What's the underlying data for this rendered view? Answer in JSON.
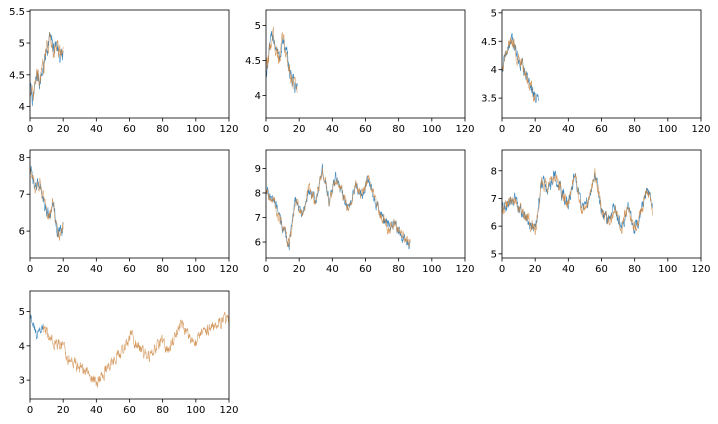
{
  "figure": {
    "colors": {
      "series_a": "#1f77b4",
      "series_b": "#cd853f"
    }
  },
  "chart_data": [
    {
      "type": "line",
      "title": "",
      "xlabel": "",
      "ylabel": "",
      "xlim": [
        0,
        120
      ],
      "ylim": [
        3.82,
        5.52
      ],
      "xticks": [
        0,
        20,
        40,
        60,
        80,
        100,
        120
      ],
      "yticks": [
        4.0,
        4.5,
        5.0,
        5.5
      ],
      "grid": false,
      "series": [
        {
          "color": "#1f77b4",
          "x": [
            0,
            20
          ],
          "noise": 0.22,
          "anchors": [
            [
              0,
              4.3
            ],
            [
              2,
              4.1
            ],
            [
              4,
              4.5
            ],
            [
              6,
              4.4
            ],
            [
              8,
              4.6
            ],
            [
              10,
              4.9
            ],
            [
              12,
              5.1
            ],
            [
              14,
              4.9
            ],
            [
              16,
              5.0
            ],
            [
              18,
              4.8
            ],
            [
              20,
              4.8
            ]
          ]
        },
        {
          "color": "#cd853f",
          "x": [
            0,
            20
          ],
          "noise": 0.22,
          "anchors": [
            [
              0,
              4.3
            ],
            [
              2,
              4.1
            ],
            [
              4,
              4.5
            ],
            [
              6,
              4.4
            ],
            [
              8,
              4.6
            ],
            [
              10,
              4.9
            ],
            [
              12,
              5.1
            ],
            [
              14,
              4.9
            ],
            [
              16,
              5.0
            ],
            [
              18,
              4.8
            ],
            [
              20,
              4.8
            ]
          ]
        }
      ]
    },
    {
      "type": "line",
      "title": "",
      "xlabel": "",
      "ylabel": "",
      "xlim": [
        0,
        120
      ],
      "ylim": [
        3.68,
        5.22
      ],
      "xticks": [
        0,
        20,
        40,
        60,
        80,
        100,
        120
      ],
      "yticks": [
        4.0,
        4.5,
        5.0
      ],
      "grid": false,
      "series": [
        {
          "color": "#1f77b4",
          "x": [
            0,
            19
          ],
          "noise": 0.2,
          "anchors": [
            [
              0,
              4.3
            ],
            [
              2,
              4.6
            ],
            [
              4,
              4.9
            ],
            [
              6,
              4.7
            ],
            [
              8,
              4.5
            ],
            [
              10,
              4.8
            ],
            [
              12,
              4.6
            ],
            [
              14,
              4.4
            ],
            [
              16,
              4.2
            ],
            [
              19,
              4.1
            ]
          ]
        },
        {
          "color": "#cd853f",
          "x": [
            0,
            19
          ],
          "noise": 0.2,
          "anchors": [
            [
              0,
              4.3
            ],
            [
              2,
              4.6
            ],
            [
              4,
              4.9
            ],
            [
              6,
              4.7
            ],
            [
              8,
              4.5
            ],
            [
              10,
              4.8
            ],
            [
              12,
              4.6
            ],
            [
              14,
              4.4
            ],
            [
              16,
              4.2
            ],
            [
              19,
              4.1
            ]
          ]
        }
      ]
    },
    {
      "type": "line",
      "title": "",
      "xlabel": "",
      "ylabel": "",
      "xlim": [
        0,
        120
      ],
      "ylim": [
        3.15,
        5.05
      ],
      "xticks": [
        0,
        20,
        40,
        60,
        80,
        100,
        120
      ],
      "yticks": [
        3.5,
        4.0,
        4.5,
        5.0
      ],
      "grid": false,
      "series": [
        {
          "color": "#1f77b4",
          "x": [
            0,
            22
          ],
          "noise": 0.2,
          "anchors": [
            [
              0,
              4.0
            ],
            [
              3,
              4.3
            ],
            [
              6,
              4.6
            ],
            [
              9,
              4.2
            ],
            [
              12,
              4.1
            ],
            [
              15,
              3.9
            ],
            [
              18,
              3.7
            ],
            [
              20,
              3.5
            ],
            [
              22,
              3.4
            ]
          ]
        },
        {
          "color": "#cd853f",
          "x": [
            0,
            20
          ],
          "noise": 0.2,
          "anchors": [
            [
              0,
              4.0
            ],
            [
              3,
              4.3
            ],
            [
              6,
              4.6
            ],
            [
              9,
              4.2
            ],
            [
              12,
              4.1
            ],
            [
              15,
              3.9
            ],
            [
              18,
              3.7
            ],
            [
              20,
              3.5
            ]
          ]
        }
      ]
    },
    {
      "type": "line",
      "title": "",
      "xlabel": "",
      "ylabel": "",
      "xlim": [
        0,
        120
      ],
      "ylim": [
        5.27,
        8.2
      ],
      "xticks": [
        0,
        20,
        40,
        60,
        80,
        100,
        120
      ],
      "yticks": [
        6,
        7,
        8
      ],
      "grid": false,
      "series": [
        {
          "color": "#1f77b4",
          "x": [
            0,
            20
          ],
          "noise": 0.28,
          "anchors": [
            [
              0,
              7.7
            ],
            [
              3,
              7.2
            ],
            [
              6,
              7.3
            ],
            [
              9,
              6.7
            ],
            [
              12,
              6.4
            ],
            [
              14,
              6.8
            ],
            [
              16,
              6.1
            ],
            [
              18,
              5.9
            ],
            [
              20,
              6.1
            ]
          ]
        },
        {
          "color": "#cd853f",
          "x": [
            0,
            20
          ],
          "noise": 0.28,
          "anchors": [
            [
              0,
              7.7
            ],
            [
              3,
              7.2
            ],
            [
              6,
              7.3
            ],
            [
              9,
              6.7
            ],
            [
              12,
              6.4
            ],
            [
              14,
              6.8
            ],
            [
              16,
              6.1
            ],
            [
              18,
              5.9
            ],
            [
              20,
              6.1
            ]
          ]
        }
      ]
    },
    {
      "type": "line",
      "title": "",
      "xlabel": "",
      "ylabel": "",
      "xlim": [
        0,
        120
      ],
      "ylim": [
        5.35,
        9.75
      ],
      "xticks": [
        0,
        20,
        40,
        60,
        80,
        100,
        120
      ],
      "yticks": [
        6,
        7,
        8,
        9
      ],
      "grid": false,
      "series": [
        {
          "color": "#1f77b4",
          "x": [
            0,
            87
          ],
          "noise": 0.38,
          "anchors": [
            [
              0,
              8.2
            ],
            [
              5,
              7.6
            ],
            [
              10,
              6.6
            ],
            [
              14,
              5.9
            ],
            [
              18,
              7.8
            ],
            [
              22,
              7.0
            ],
            [
              26,
              8.2
            ],
            [
              30,
              7.6
            ],
            [
              34,
              9.0
            ],
            [
              38,
              7.6
            ],
            [
              42,
              8.6
            ],
            [
              46,
              8.0
            ],
            [
              50,
              7.3
            ],
            [
              54,
              8.3
            ],
            [
              58,
              7.9
            ],
            [
              62,
              8.6
            ],
            [
              66,
              7.6
            ],
            [
              70,
              7.0
            ],
            [
              74,
              6.6
            ],
            [
              78,
              6.8
            ],
            [
              82,
              6.3
            ],
            [
              87,
              5.9
            ]
          ]
        },
        {
          "color": "#cd853f",
          "x": [
            0,
            87
          ],
          "noise": 0.38,
          "anchors": [
            [
              0,
              8.2
            ],
            [
              5,
              7.6
            ],
            [
              10,
              6.6
            ],
            [
              14,
              5.9
            ],
            [
              18,
              7.8
            ],
            [
              22,
              7.0
            ],
            [
              26,
              8.2
            ],
            [
              30,
              7.6
            ],
            [
              34,
              9.0
            ],
            [
              38,
              7.6
            ],
            [
              42,
              8.6
            ],
            [
              46,
              8.0
            ],
            [
              50,
              7.3
            ],
            [
              54,
              8.3
            ],
            [
              58,
              7.9
            ],
            [
              62,
              8.6
            ],
            [
              66,
              7.6
            ],
            [
              70,
              7.0
            ],
            [
              74,
              6.6
            ],
            [
              78,
              6.8
            ],
            [
              82,
              6.3
            ],
            [
              87,
              5.9
            ]
          ]
        }
      ]
    },
    {
      "type": "line",
      "title": "",
      "xlabel": "",
      "ylabel": "",
      "xlim": [
        0,
        120
      ],
      "ylim": [
        4.85,
        8.75
      ],
      "xticks": [
        0,
        20,
        40,
        60,
        80,
        100,
        120
      ],
      "yticks": [
        5,
        6,
        7,
        8
      ],
      "grid": false,
      "series": [
        {
          "color": "#1f77b4",
          "x": [
            0,
            91
          ],
          "noise": 0.4,
          "anchors": [
            [
              0,
              6.6
            ],
            [
              4,
              6.8
            ],
            [
              8,
              7.0
            ],
            [
              12,
              6.4
            ],
            [
              16,
              6.2
            ],
            [
              20,
              5.8
            ],
            [
              24,
              7.6
            ],
            [
              28,
              7.4
            ],
            [
              32,
              7.8
            ],
            [
              36,
              7.2
            ],
            [
              40,
              6.8
            ],
            [
              44,
              7.9
            ],
            [
              48,
              6.6
            ],
            [
              52,
              6.9
            ],
            [
              56,
              8.0
            ],
            [
              60,
              6.6
            ],
            [
              64,
              6.1
            ],
            [
              68,
              6.7
            ],
            [
              72,
              5.9
            ],
            [
              76,
              6.7
            ],
            [
              80,
              5.9
            ],
            [
              84,
              6.6
            ],
            [
              88,
              7.3
            ],
            [
              91,
              6.5
            ]
          ]
        },
        {
          "color": "#cd853f",
          "x": [
            0,
            91
          ],
          "noise": 0.4,
          "anchors": [
            [
              0,
              6.6
            ],
            [
              4,
              6.8
            ],
            [
              8,
              7.0
            ],
            [
              12,
              6.4
            ],
            [
              16,
              6.2
            ],
            [
              20,
              5.8
            ],
            [
              24,
              7.6
            ],
            [
              28,
              7.4
            ],
            [
              32,
              7.8
            ],
            [
              36,
              7.2
            ],
            [
              40,
              6.8
            ],
            [
              44,
              7.9
            ],
            [
              48,
              6.6
            ],
            [
              52,
              6.9
            ],
            [
              56,
              8.0
            ],
            [
              60,
              6.6
            ],
            [
              64,
              6.1
            ],
            [
              68,
              6.7
            ],
            [
              72,
              5.9
            ],
            [
              76,
              6.7
            ],
            [
              80,
              5.9
            ],
            [
              84,
              6.6
            ],
            [
              88,
              7.3
            ],
            [
              91,
              6.5
            ]
          ]
        }
      ]
    },
    {
      "type": "line",
      "title": "",
      "xlabel": "",
      "ylabel": "",
      "xlim": [
        0,
        120
      ],
      "ylim": [
        2.45,
        5.6
      ],
      "xticks": [
        0,
        20,
        40,
        60,
        80,
        100,
        120
      ],
      "yticks": [
        3,
        4,
        5
      ],
      "grid": false,
      "series": [
        {
          "color": "#1f77b4",
          "x": [
            0,
            8
          ],
          "noise": 0.22,
          "anchors": [
            [
              0,
              4.9
            ],
            [
              2,
              4.7
            ],
            [
              4,
              4.3
            ],
            [
              6,
              4.5
            ],
            [
              8,
              4.6
            ]
          ]
        },
        {
          "color": "#cd853f",
          "x": [
            8,
            120
          ],
          "noise": 0.3,
          "anchors": [
            [
              8,
              4.5
            ],
            [
              12,
              4.2
            ],
            [
              18,
              4.0
            ],
            [
              24,
              3.6
            ],
            [
              30,
              3.4
            ],
            [
              35,
              3.2
            ],
            [
              40,
              2.9
            ],
            [
              44,
              3.2
            ],
            [
              48,
              3.4
            ],
            [
              52,
              3.7
            ],
            [
              56,
              3.9
            ],
            [
              60,
              4.3
            ],
            [
              64,
              4.1
            ],
            [
              68,
              3.8
            ],
            [
              72,
              3.7
            ],
            [
              76,
              4.0
            ],
            [
              80,
              4.1
            ],
            [
              84,
              3.9
            ],
            [
              88,
              4.4
            ],
            [
              92,
              4.6
            ],
            [
              96,
              4.2
            ],
            [
              100,
              4.1
            ],
            [
              104,
              4.4
            ],
            [
              108,
              4.5
            ],
            [
              112,
              4.6
            ],
            [
              116,
              4.7
            ],
            [
              120,
              4.8
            ]
          ]
        }
      ]
    }
  ]
}
